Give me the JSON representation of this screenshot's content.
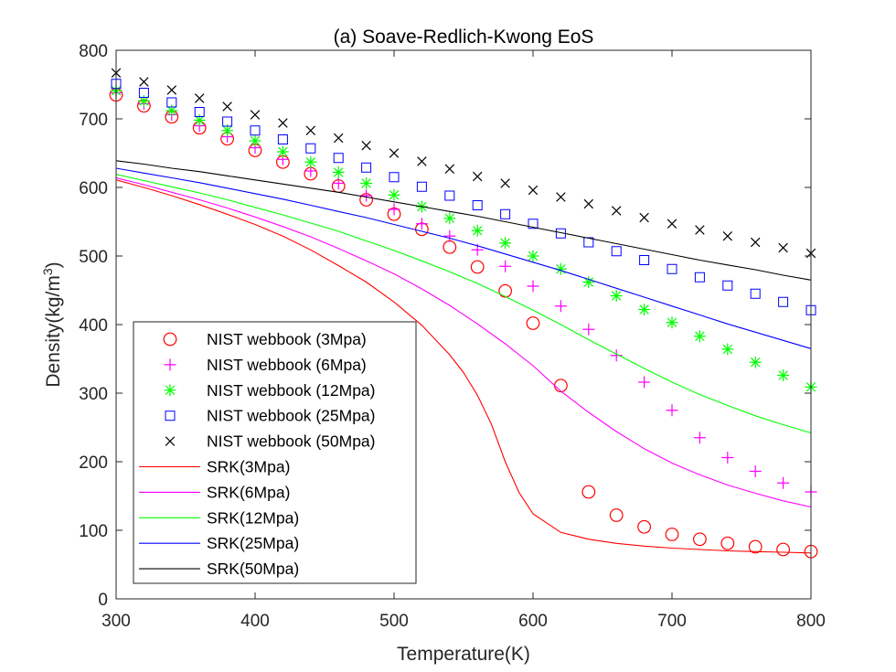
{
  "chart_data": {
    "type": "scatter",
    "title": "(a) Soave-Redlich-Kwong EoS",
    "xlabel": "Temperature(K)",
    "ylabel_main": "Density(kg/m",
    "ylabel_sup": "3",
    "ylabel_close": ")",
    "xlim": [
      300,
      800
    ],
    "ylim": [
      0,
      800
    ],
    "xticks": [
      300,
      400,
      500,
      600,
      700,
      800
    ],
    "xtick_labels": [
      "300",
      "400",
      "500",
      "600",
      "700",
      "800"
    ],
    "yticks": [
      0,
      100,
      200,
      300,
      400,
      500,
      600,
      700,
      800
    ],
    "ytick_labels": [
      "0",
      "100",
      "200",
      "300",
      "400",
      "500",
      "600",
      "700",
      "800"
    ],
    "grid": false,
    "legend_position": "bottom-left",
    "series": [
      {
        "name": "NIST webbook (3Mpa)",
        "kind": "markers",
        "marker": "circle",
        "color": "#ff0000",
        "x": [
          300,
          320,
          340,
          360,
          380,
          400,
          420,
          440,
          460,
          480,
          500,
          520,
          540,
          560,
          580,
          600,
          620,
          640,
          660,
          680,
          700,
          720,
          740,
          760,
          780,
          800
        ],
        "y": [
          735,
          719,
          703,
          687,
          671,
          654,
          637,
          620,
          602,
          582,
          561,
          539,
          513,
          484,
          449,
          402,
          311,
          156,
          122,
          105,
          94,
          87,
          81,
          76,
          72,
          69
        ]
      },
      {
        "name": "NIST webbook (6Mpa)",
        "kind": "markers",
        "marker": "plus",
        "color": "#ff00ff",
        "x": [
          300,
          320,
          340,
          360,
          380,
          400,
          420,
          440,
          460,
          480,
          500,
          520,
          540,
          560,
          580,
          600,
          620,
          640,
          660,
          680,
          700,
          720,
          740,
          760,
          780,
          800
        ],
        "y": [
          738,
          722,
          706,
          690,
          674,
          658,
          641,
          624,
          606,
          588,
          568,
          547,
          529,
          509,
          485,
          456,
          427,
          393,
          355,
          316,
          275,
          235,
          206,
          186,
          169,
          156
        ]
      },
      {
        "name": "NIST webbook (12Mpa)",
        "kind": "markers",
        "marker": "asterisk",
        "color": "#00ff00",
        "x": [
          300,
          320,
          340,
          360,
          380,
          400,
          420,
          440,
          460,
          480,
          500,
          520,
          540,
          560,
          580,
          600,
          620,
          640,
          660,
          680,
          700,
          720,
          740,
          760,
          780,
          800
        ],
        "y": [
          741,
          726,
          712,
          698,
          683,
          668,
          652,
          637,
          622,
          606,
          589,
          572,
          555,
          537,
          519,
          500,
          481,
          462,
          442,
          422,
          403,
          383,
          364,
          345,
          326,
          309
        ]
      },
      {
        "name": "NIST webbook (25Mpa)",
        "kind": "markers",
        "marker": "square",
        "color": "#0000ff",
        "x": [
          300,
          320,
          340,
          360,
          380,
          400,
          420,
          440,
          460,
          480,
          500,
          520,
          540,
          560,
          580,
          600,
          620,
          640,
          660,
          680,
          700,
          720,
          740,
          760,
          780,
          800
        ],
        "y": [
          751,
          738,
          724,
          710,
          696,
          683,
          670,
          657,
          643,
          629,
          615,
          601,
          588,
          574,
          561,
          547,
          533,
          520,
          507,
          494,
          481,
          469,
          457,
          445,
          433,
          421
        ]
      },
      {
        "name": "NIST webbook (50Mpa)",
        "kind": "markers",
        "marker": "x",
        "color": "#000000",
        "x": [
          300,
          320,
          340,
          360,
          380,
          400,
          420,
          440,
          460,
          480,
          500,
          520,
          540,
          560,
          580,
          600,
          620,
          640,
          660,
          680,
          700,
          720,
          740,
          760,
          780,
          800
        ],
        "y": [
          767,
          754,
          742,
          730,
          718,
          706,
          694,
          683,
          672,
          661,
          650,
          638,
          627,
          616,
          606,
          596,
          586,
          576,
          566,
          556,
          547,
          538,
          529,
          520,
          512,
          504
        ]
      },
      {
        "name": "SRK(3Mpa)",
        "kind": "line",
        "color": "#ff0000",
        "x": [
          300,
          320,
          340,
          360,
          380,
          400,
          420,
          440,
          460,
          480,
          500,
          520,
          540,
          550,
          560,
          570,
          580,
          590,
          600,
          620,
          640,
          660,
          680,
          700,
          720,
          740,
          760,
          780,
          800
        ],
        "y": [
          611,
          600,
          588,
          575,
          561,
          546,
          529,
          509,
          486,
          462,
          433,
          399,
          356,
          330,
          297,
          255,
          200,
          155,
          124,
          97,
          87,
          81,
          77,
          74,
          72,
          70,
          69,
          68,
          67
        ]
      },
      {
        "name": "SRK(6Mpa)",
        "kind": "line",
        "color": "#ff00ff",
        "x": [
          300,
          320,
          340,
          360,
          380,
          400,
          420,
          440,
          460,
          480,
          500,
          520,
          540,
          560,
          580,
          600,
          620,
          640,
          660,
          680,
          700,
          720,
          740,
          760,
          780,
          800
        ],
        "y": [
          614,
          604,
          593,
          582,
          570,
          557,
          543,
          528,
          511,
          493,
          474,
          452,
          428,
          401,
          372,
          340,
          303,
          272,
          244,
          219,
          198,
          181,
          166,
          154,
          143,
          134
        ]
      },
      {
        "name": "SRK(12Mpa)",
        "kind": "line",
        "color": "#00ff00",
        "x": [
          300,
          320,
          340,
          360,
          380,
          400,
          420,
          440,
          460,
          480,
          500,
          520,
          540,
          560,
          580,
          600,
          620,
          640,
          660,
          680,
          700,
          720,
          740,
          760,
          780,
          800
        ],
        "y": [
          619,
          610,
          601,
          592,
          582,
          571,
          560,
          548,
          536,
          522,
          508,
          493,
          477,
          460,
          441,
          421,
          400,
          378,
          357,
          336,
          316,
          298,
          282,
          267,
          254,
          242
        ]
      },
      {
        "name": "SRK(25Mpa)",
        "kind": "line",
        "color": "#0000ff",
        "x": [
          300,
          320,
          340,
          360,
          380,
          400,
          420,
          440,
          460,
          480,
          500,
          520,
          540,
          560,
          580,
          600,
          620,
          640,
          660,
          680,
          700,
          720,
          740,
          760,
          780,
          800
        ],
        "y": [
          628,
          621,
          614,
          607,
          599,
          591,
          583,
          574,
          565,
          556,
          546,
          536,
          526,
          515,
          503,
          491,
          479,
          466,
          453,
          440,
          427,
          414,
          401,
          389,
          377,
          365
        ]
      },
      {
        "name": "SRK(50Mpa)",
        "kind": "line",
        "color": "#000000",
        "x": [
          300,
          320,
          340,
          360,
          380,
          400,
          420,
          440,
          460,
          480,
          500,
          520,
          540,
          560,
          580,
          600,
          620,
          640,
          660,
          680,
          700,
          720,
          740,
          760,
          780,
          800
        ],
        "y": [
          639,
          634,
          628,
          623,
          617,
          611,
          605,
          599,
          593,
          586,
          579,
          572,
          565,
          558,
          550,
          542,
          534,
          526,
          518,
          510,
          502,
          494,
          487,
          480,
          472,
          465
        ]
      }
    ]
  }
}
